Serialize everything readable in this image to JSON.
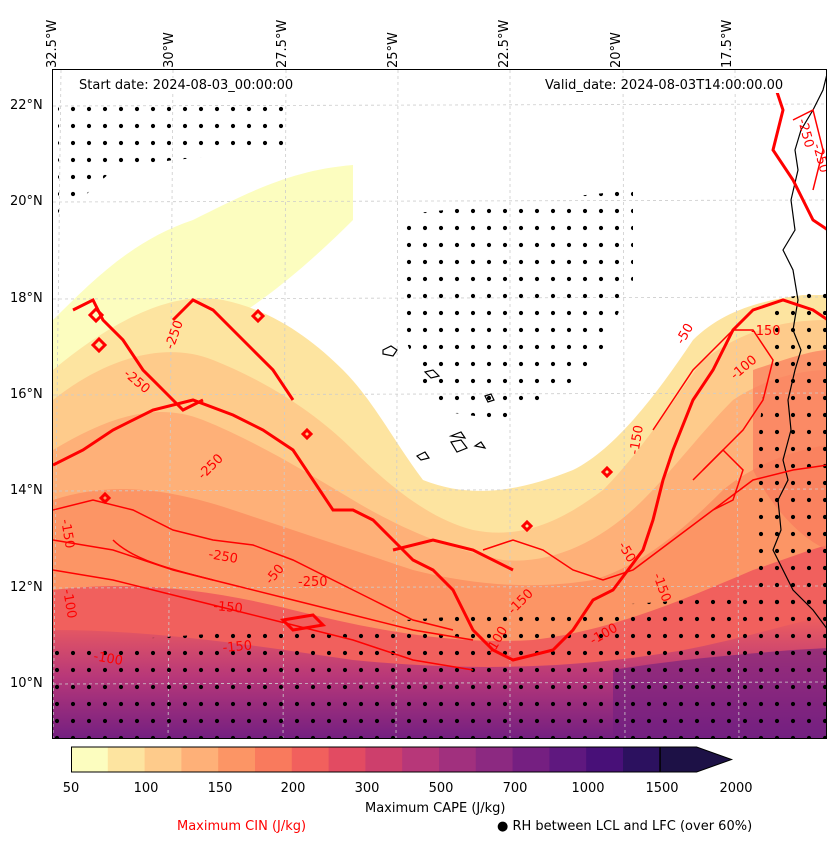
{
  "map": {
    "lon_labels": [
      "32.5°W",
      "30°W",
      "27.5°W",
      "25°W",
      "22.5°W",
      "20°W",
      "17.5°W"
    ],
    "lat_labels": [
      "22°N",
      "20°N",
      "18°N",
      "16°N",
      "14°N",
      "12°N",
      "10°N"
    ],
    "start_date": "Start date: 2024-08-03_00:00:00",
    "valid_date": "Valid_date: 2024-08-03T14:00:00.00",
    "cin_contour_labels": [
      "-250",
      "-250",
      "-250",
      "-250",
      "-150",
      "-100",
      "-100",
      "-150",
      "-150",
      "-50",
      "-250",
      "-150",
      "-150",
      "-100",
      "-150",
      "-50",
      "-50",
      "-100",
      "-150",
      "-100",
      "-250",
      "-250"
    ]
  },
  "colorbar": {
    "label": "Maximum CAPE (J/kg)",
    "ticks": [
      "50",
      "100",
      "150",
      "200",
      "300",
      "500",
      "700",
      "1000",
      "1500",
      "2000"
    ],
    "colors": [
      "#fcfdbf",
      "#fde4a0",
      "#fecb8b",
      "#feb078",
      "#fc9565",
      "#f97a5d",
      "#f1605d",
      "#e24b62",
      "#cd3f6c",
      "#b73779",
      "#a1307e",
      "#8c2981",
      "#751f81",
      "#5f187f",
      "#481078",
      "#2c115f",
      "#1d1146"
    ]
  },
  "legend": {
    "cin_label": "Maximum CIN (J/kg)",
    "cin_color": "#ff0000",
    "rh_label": "RH between LCL and LFC (over 60%)",
    "rh_marker": "●"
  }
}
